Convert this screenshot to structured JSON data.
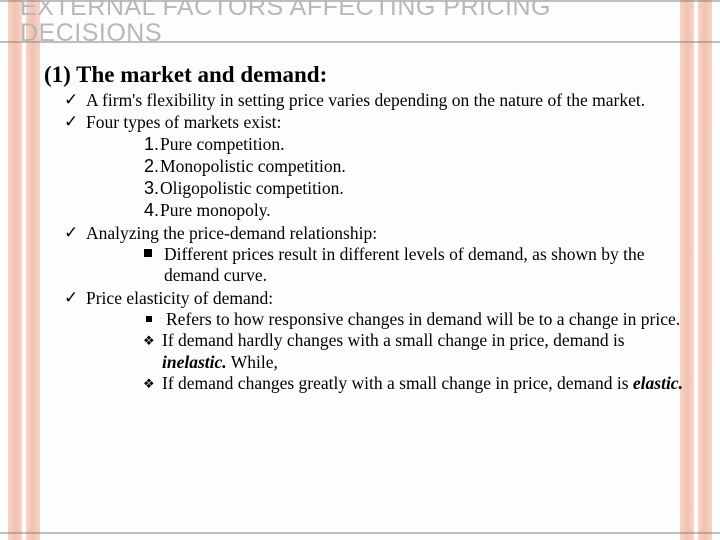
{
  "colors": {
    "bar": "#e8916f",
    "title": "#b8b8b8",
    "rule": "#8a8a8a",
    "text": "#000000",
    "bg": "#fdfdfd"
  },
  "fonts": {
    "title_family": "Arial",
    "title_size_pt": 19,
    "body_family": "Times New Roman",
    "body_size_pt": 13,
    "heading_size_pt": 17
  },
  "title_line1": "EXTERNAL FACTORS AFFECTING PRICING",
  "title_line2": "DECISIONS",
  "heading": "(1) The market and demand:",
  "bullets": {
    "b1": "A firm's flexibility in setting price varies depending on the nature of the market.",
    "b2": "Four types of markets exist:",
    "n1": "Pure competition.",
    "n2": "Monopolistic competition.",
    "n3": "Oligopolistic competition.",
    "n4": "Pure monopoly.",
    "b3": "Analyzing the price-demand relationship:",
    "sq1": "Different prices result in different levels of demand, as shown by the demand curve.",
    "b4": "Price elasticity of demand:",
    "sq2": "Refers to how responsive changes in demand will be to a change in price.",
    "d1a": "If demand hardly changes with a small change in price, demand is ",
    "d1b": "inelastic.",
    "d1c": " While,",
    "d2a": "If demand changes greatly with a small change in price, demand is ",
    "d2b": "elastic."
  },
  "markers": {
    "tick": "✓",
    "diamond": "❖",
    "num1": "1.",
    "num2": "2.",
    "num3": "3.",
    "num4": "4."
  }
}
